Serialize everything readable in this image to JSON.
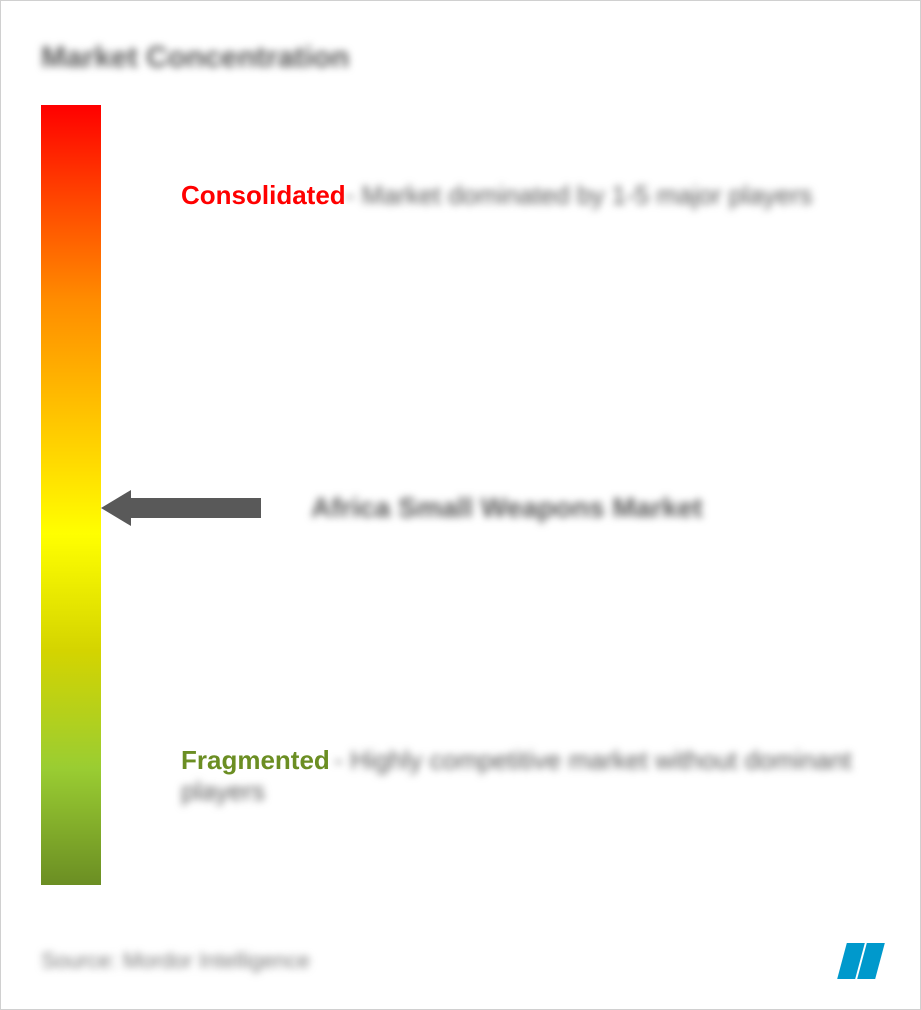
{
  "title": "Market Concentration",
  "gradient": {
    "colors": [
      "#ff0000",
      "#ff4500",
      "#ff8c00",
      "#ffd700",
      "#ffff00",
      "#d4d400",
      "#9acd32",
      "#6b8e23"
    ],
    "stops": [
      0,
      12,
      25,
      45,
      55,
      70,
      85,
      100
    ]
  },
  "consolidated": {
    "label": "Consolidated",
    "label_color": "#ff0000",
    "description": "- Market dominated by 1-5 major players",
    "position_pct": 10
  },
  "middle": {
    "market_name": "Africa Small Weapons Market",
    "position_pct": 50,
    "arrow_color": "#595959"
  },
  "fragmented": {
    "label": "Fragmented",
    "label_color": "#6b8e23",
    "description": "- Highly competitive market without dominant players",
    "position_pct": 82
  },
  "footer": {
    "source": "Source: Mordor Intelligence",
    "logo_color": "#0099cc"
  },
  "styling": {
    "text_color": "#595959",
    "background_color": "#ffffff",
    "border_color": "#d0d0d0",
    "title_fontsize": 30,
    "label_fontsize": 26,
    "market_fontsize": 28,
    "source_fontsize": 22
  }
}
